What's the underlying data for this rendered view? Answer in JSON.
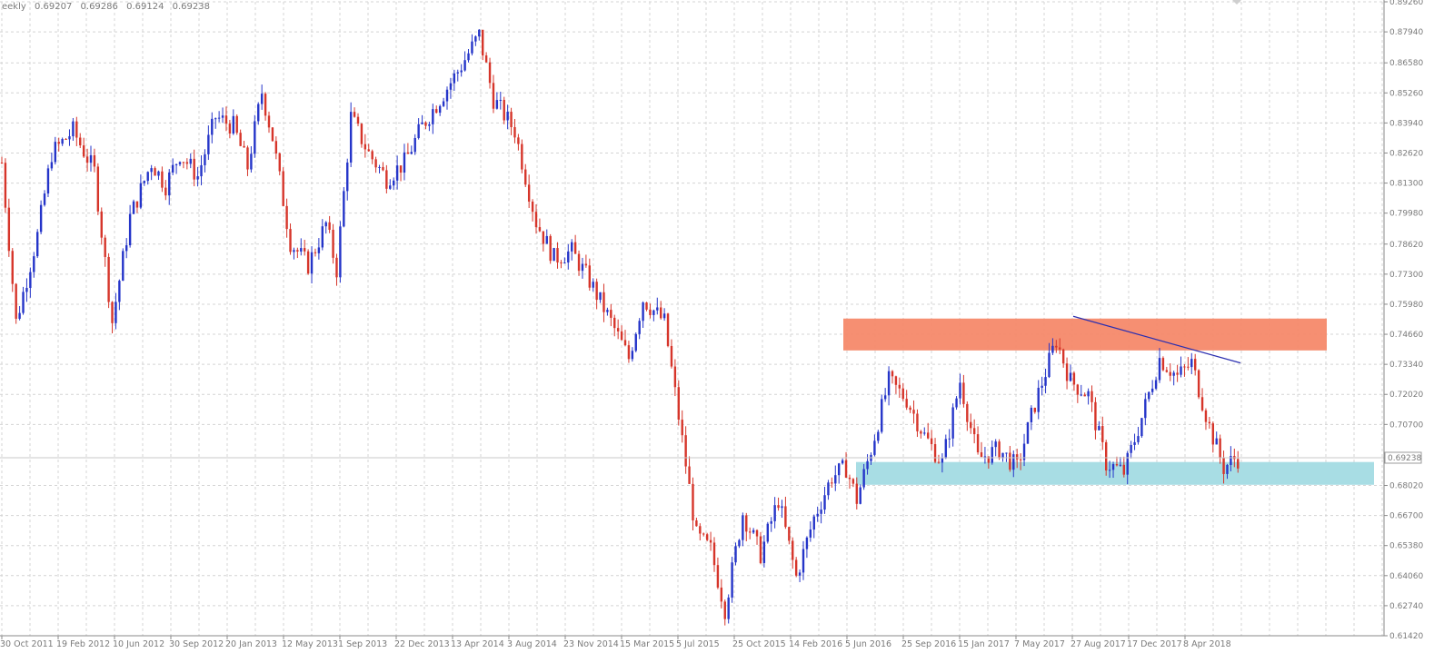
{
  "header": {
    "period": "eekly",
    "open": "0.69207",
    "high": "0.69286",
    "low": "0.69124",
    "close": "0.69238"
  },
  "current_price_label": "0.69238",
  "colors": {
    "bull": "#2535c9",
    "bear": "#d6352a",
    "resistance_zone": "#f5896a",
    "support_zone": "#a8dde4",
    "trendline": "#2b2fb0",
    "grid": "#d4d4d4"
  },
  "chart_data": {
    "type": "candlestick",
    "y_axis": {
      "ylim": [
        0.6142,
        0.8926
      ],
      "ticks": [
        "0.89260",
        "0.87940",
        "0.86580",
        "0.85260",
        "0.83940",
        "0.82620",
        "0.81300",
        "0.79980",
        "0.78620",
        "0.77300",
        "0.75980",
        "0.74660",
        "0.73340",
        "0.72020",
        "0.70700",
        "0.69238",
        "0.68020",
        "0.66700",
        "0.65380",
        "0.64060",
        "0.62740",
        "0.61420"
      ]
    },
    "x_axis": {
      "ticks": [
        "30 Oct 2011",
        "19 Feb 2012",
        "10 Jun 2012",
        "30 Sep 2012",
        "20 Jan 2013",
        "12 May 2013",
        "1 Sep 2013",
        "22 Dec 2013",
        "13 Apr 2014",
        "3 Aug 2014",
        "23 Nov 2014",
        "15 Mar 2015",
        "5 Jul 2015",
        "25 Oct 2015",
        "14 Feb 2016",
        "5 Jun 2016",
        "25 Sep 2016",
        "15 Jan 2017",
        "7 May 2017",
        "27 Aug 2017",
        "17 Dec 2017",
        "8 Apr 2018"
      ]
    },
    "grid": true,
    "zones": [
      {
        "type": "resistance",
        "from": 0.7395,
        "to": 0.7535
      },
      {
        "type": "support",
        "from": 0.6805,
        "to": 0.6905
      }
    ],
    "trendline": {
      "from_price": 0.7545,
      "to_price": 0.734
    },
    "close_path": [
      [
        0,
        0.822
      ],
      [
        4,
        0.752
      ],
      [
        10,
        0.79
      ],
      [
        14,
        0.826
      ],
      [
        20,
        0.836
      ],
      [
        26,
        0.818
      ],
      [
        31,
        0.752
      ],
      [
        36,
        0.798
      ],
      [
        42,
        0.822
      ],
      [
        46,
        0.812
      ],
      [
        50,
        0.826
      ],
      [
        55,
        0.816
      ],
      [
        60,
        0.842
      ],
      [
        65,
        0.838
      ],
      [
        69,
        0.82
      ],
      [
        73,
        0.853
      ],
      [
        76,
        0.833
      ],
      [
        81,
        0.787
      ],
      [
        86,
        0.777
      ],
      [
        91,
        0.795
      ],
      [
        94,
        0.775
      ],
      [
        98,
        0.842
      ],
      [
        103,
        0.826
      ],
      [
        108,
        0.815
      ],
      [
        113,
        0.822
      ],
      [
        118,
        0.838
      ],
      [
        123,
        0.85
      ],
      [
        128,
        0.862
      ],
      [
        134,
        0.878
      ],
      [
        138,
        0.85
      ],
      [
        144,
        0.836
      ],
      [
        150,
        0.796
      ],
      [
        155,
        0.78
      ],
      [
        160,
        0.783
      ],
      [
        165,
        0.77
      ],
      [
        171,
        0.752
      ],
      [
        176,
        0.736
      ],
      [
        180,
        0.762
      ],
      [
        186,
        0.752
      ],
      [
        191,
        0.7
      ],
      [
        195,
        0.658
      ],
      [
        199,
        0.652
      ],
      [
        203,
        0.626
      ],
      [
        208,
        0.668
      ],
      [
        213,
        0.65
      ],
      [
        218,
        0.674
      ],
      [
        223,
        0.64
      ],
      [
        228,
        0.666
      ],
      [
        233,
        0.684
      ],
      [
        237,
        0.688
      ],
      [
        240,
        0.674
      ],
      [
        244,
        0.696
      ],
      [
        249,
        0.726
      ],
      [
        254,
        0.718
      ],
      [
        259,
        0.702
      ],
      [
        264,
        0.69
      ],
      [
        269,
        0.726
      ],
      [
        274,
        0.692
      ],
      [
        280,
        0.696
      ],
      [
        285,
        0.688
      ],
      [
        290,
        0.716
      ],
      [
        296,
        0.744
      ],
      [
        300,
        0.726
      ],
      [
        305,
        0.72
      ],
      [
        310,
        0.69
      ],
      [
        315,
        0.686
      ],
      [
        320,
        0.71
      ],
      [
        325,
        0.736
      ],
      [
        330,
        0.728
      ],
      [
        334,
        0.734
      ],
      [
        339,
        0.706
      ],
      [
        343,
        0.688
      ],
      [
        346,
        0.692
      ]
    ]
  }
}
